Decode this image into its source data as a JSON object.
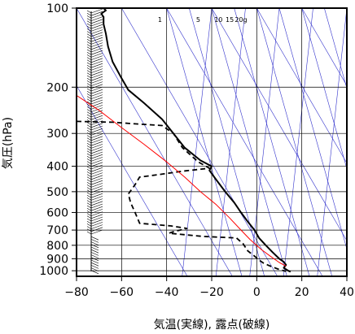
{
  "chart_data": {
    "type": "line",
    "xlabel": "気温(実線), 露点(破線)",
    "ylabel": "気圧(hPa)",
    "xlim": [
      -80,
      40
    ],
    "ylim": [
      1050,
      100
    ],
    "y_scale": "log",
    "x_ticks": [
      -80,
      -60,
      -40,
      -20,
      0,
      20,
      40
    ],
    "x_tick_labels": [
      "−80",
      "−60",
      "−40",
      "−20",
      "0",
      "20",
      "40"
    ],
    "y_ticks": [
      100,
      200,
      300,
      400,
      500,
      600,
      700,
      800,
      900,
      1000
    ],
    "y_tick_labels": [
      "100",
      "200",
      "300",
      "400",
      "500",
      "600",
      "700",
      "800",
      "900",
      "1000"
    ],
    "grid": true,
    "mixing_ratio_labels": [
      "1",
      "5",
      "10",
      "15",
      "20g"
    ],
    "colors": {
      "temperature": "#000000",
      "dewpoint": "#000000",
      "parcel": "#ff0000",
      "background_lines": "#3333cc",
      "grid": "#000000",
      "wind": "#000000"
    },
    "series": [
      {
        "style": "solid",
        "points": [
          [
            -68,
            100
          ],
          [
            -67,
            102
          ],
          [
            -69,
            105
          ],
          [
            -68,
            108
          ],
          [
            -68,
            115
          ],
          [
            -67,
            125
          ],
          [
            -66,
            140
          ],
          [
            -64,
            160
          ],
          [
            -60,
            185
          ],
          [
            -57,
            205
          ],
          [
            -50,
            230
          ],
          [
            -42,
            265
          ],
          [
            -37,
            300
          ],
          [
            -32,
            340
          ],
          [
            -25,
            380
          ],
          [
            -20,
            400
          ],
          [
            -21,
            415
          ],
          [
            -18,
            450
          ],
          [
            -14,
            500
          ],
          [
            -10,
            550
          ],
          [
            -7,
            600
          ],
          [
            -4,
            650
          ],
          [
            -1,
            700
          ],
          [
            1,
            750
          ],
          [
            4,
            800
          ],
          [
            7,
            850
          ],
          [
            10,
            900
          ],
          [
            12,
            925
          ],
          [
            13,
            950
          ],
          [
            12,
            975
          ],
          [
            14,
            1000
          ],
          [
            15,
            1010
          ]
        ]
      },
      {
        "style": "dashed",
        "points": [
          [
            -80,
            270
          ],
          [
            -64,
            272
          ],
          [
            -56,
            275
          ],
          [
            -42,
            280
          ],
          [
            -37,
            300
          ],
          [
            -33,
            340
          ],
          [
            -26,
            385
          ],
          [
            -21,
            407
          ],
          [
            -33,
            418
          ],
          [
            -45,
            432
          ],
          [
            -52,
            440
          ],
          [
            -54,
            470
          ],
          [
            -57,
            510
          ],
          [
            -56,
            550
          ],
          [
            -54,
            600
          ],
          [
            -52,
            660
          ],
          [
            -38,
            675
          ],
          [
            -31,
            690
          ],
          [
            -37,
            710
          ],
          [
            -39,
            720
          ],
          [
            -24,
            740
          ],
          [
            -9,
            750
          ],
          [
            -6,
            790
          ],
          [
            -4,
            840
          ],
          [
            -1,
            880
          ],
          [
            1,
            910
          ],
          [
            3,
            935
          ],
          [
            6,
            960
          ],
          [
            10,
            990
          ],
          [
            13,
            1005
          ]
        ]
      },
      {
        "style": "solid-red",
        "points": [
          [
            -80,
            215
          ],
          [
            -70,
            245
          ],
          [
            -60,
            285
          ],
          [
            -50,
            330
          ],
          [
            -40,
            385
          ],
          [
            -32,
            440
          ],
          [
            -25,
            500
          ],
          [
            -18,
            560
          ],
          [
            -12,
            630
          ],
          [
            -7,
            700
          ],
          [
            -3,
            760
          ],
          [
            2,
            830
          ],
          [
            6,
            880
          ],
          [
            10,
            930
          ],
          [
            13,
            960
          ]
        ]
      }
    ]
  }
}
